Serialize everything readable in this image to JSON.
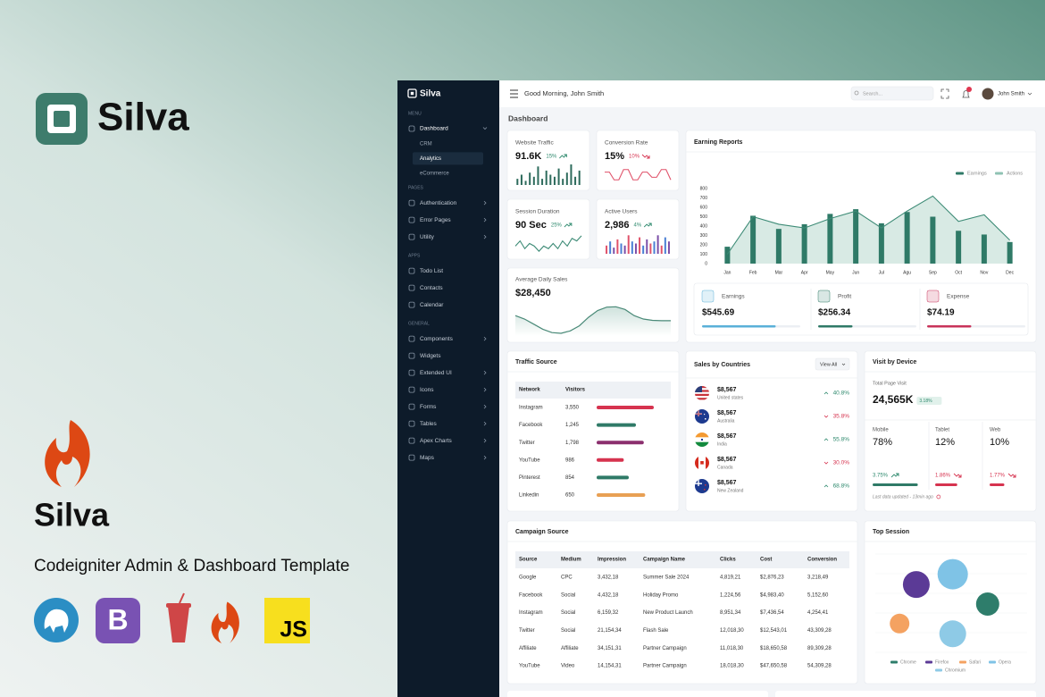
{
  "promo": {
    "brand": "Silva",
    "product": "Silva",
    "subtitle": "Codeigniter Admin & Dashboard Template",
    "tech_icons": [
      "B",
      "JS"
    ]
  },
  "sidebar": {
    "brand": "Silva",
    "sections": [
      {
        "heading": "MENU",
        "items": [
          {
            "label": "Dashboard",
            "expandable": true,
            "children": [
              "CRM",
              "Analytics",
              "eCommerce"
            ]
          }
        ]
      },
      {
        "heading": "PAGES",
        "items": [
          {
            "label": "Authentication",
            "expandable": true
          },
          {
            "label": "Error Pages",
            "expandable": true
          },
          {
            "label": "Utility",
            "expandable": true
          }
        ]
      },
      {
        "heading": "APPS",
        "items": [
          {
            "label": "Todo List"
          },
          {
            "label": "Contacts"
          },
          {
            "label": "Calendar"
          }
        ]
      },
      {
        "heading": "GENERAL",
        "items": [
          {
            "label": "Components",
            "expandable": true
          },
          {
            "label": "Widgets"
          },
          {
            "label": "Extended UI",
            "expandable": true
          },
          {
            "label": "Icons",
            "expandable": true
          },
          {
            "label": "Forms",
            "expandable": true
          },
          {
            "label": "Tables",
            "expandable": true
          },
          {
            "label": "Apex Charts",
            "expandable": true
          },
          {
            "label": "Maps",
            "expandable": true
          }
        ]
      }
    ]
  },
  "header": {
    "greeting": "Good Morning, John Smith",
    "search_placeholder": "Search...",
    "user": "John Smith"
  },
  "page_title": "Dashboard",
  "stats": [
    {
      "title": "Website Traffic",
      "value": "91.6K",
      "change": "15%",
      "trend": "up",
      "spark": {
        "kind": "bars",
        "ylim": [
          0,
          10
        ],
        "colors": [
          "#2d6b5c"
        ],
        "values": [
          3,
          5,
          2,
          6,
          4,
          9,
          3,
          7,
          5,
          4,
          8,
          3,
          6,
          10,
          4,
          7
        ]
      }
    },
    {
      "title": "Conversion Rate",
      "value": "15%",
      "change": "10%",
      "trend": "down",
      "spark": {
        "kind": "line",
        "ylim": [
          0,
          8
        ],
        "color": "#e0526a",
        "values": [
          5,
          5,
          2,
          2,
          6,
          6,
          2,
          2,
          5,
          5,
          3,
          3,
          6,
          6,
          2
        ]
      }
    },
    {
      "title": "Session Duration",
      "value": "90 Sec",
      "change": "25%",
      "trend": "up",
      "spark": {
        "kind": "line",
        "ylim": [
          0,
          8
        ],
        "color": "#3d8b76",
        "values": [
          3,
          5,
          2,
          4,
          3,
          1,
          3,
          2,
          4,
          2,
          5,
          3,
          6,
          5,
          7
        ]
      }
    },
    {
      "title": "Active Users",
      "value": "2,986",
      "change": "4%",
      "trend": "up",
      "spark": {
        "kind": "bars",
        "ylim": [
          0,
          10
        ],
        "colors": [
          "#e0526a",
          "#4a7fd4",
          "#7b4fa8"
        ],
        "values": [
          4,
          6,
          3,
          7,
          5,
          4,
          9,
          6,
          5,
          8,
          4,
          7,
          5,
          6,
          9,
          4,
          8,
          6
        ]
      }
    }
  ],
  "avg_sales": {
    "title": "Average Daily Sales",
    "value": "$28,450",
    "ylim": [
      0,
      10
    ],
    "values": [
      6,
      5,
      3.5,
      2,
      1,
      0.8,
      1.5,
      3,
      5.5,
      7.5,
      8.5,
      8.6,
      7.8,
      6,
      5,
      4.6,
      4.5,
      4.5
    ]
  },
  "earning_reports": {
    "title": "Earning Reports",
    "legend": [
      {
        "name": "Earnings",
        "color": "#2f7a67"
      },
      {
        "name": "Actions",
        "color": "#8fc2b3"
      }
    ],
    "months": [
      "Jan",
      "Feb",
      "Mar",
      "Apr",
      "May",
      "Jun",
      "Jul",
      "Agu",
      "Sep",
      "Oct",
      "Nov",
      "Dec"
    ],
    "earnings": [
      180,
      510,
      370,
      420,
      530,
      580,
      430,
      550,
      500,
      350,
      310,
      230
    ],
    "actions": [
      100,
      500,
      420,
      380,
      480,
      560,
      380,
      560,
      720,
      450,
      520,
      250
    ],
    "ylim": [
      0,
      800
    ],
    "yticks": [
      0,
      100,
      200,
      300,
      400,
      500,
      600,
      700,
      800
    ],
    "summary": [
      {
        "label": "Earnings",
        "value": "$545.69",
        "color": "#5ab0d8",
        "progress": 75
      },
      {
        "label": "Profit",
        "value": "$256.34",
        "color": "#2f7a67",
        "progress": 35
      },
      {
        "label": "Expense",
        "value": "$74.19",
        "color": "#c8335a",
        "progress": 45
      }
    ]
  },
  "traffic_source": {
    "title": "Traffic Source",
    "columns": [
      "Network",
      "Visitors"
    ],
    "rows": [
      {
        "network": "Instagram",
        "visitors": "3,550",
        "share": 80,
        "color": "#d6334f"
      },
      {
        "network": "Facebook",
        "visitors": "1,245",
        "share": 55,
        "color": "#2f7a67"
      },
      {
        "network": "Twitter",
        "visitors": "1,798",
        "share": 66,
        "color": "#8b2f6e"
      },
      {
        "network": "YouTube",
        "visitors": "986",
        "share": 38,
        "color": "#d6334f"
      },
      {
        "network": "Pinterest",
        "visitors": "854",
        "share": 45,
        "color": "#2f7a67"
      },
      {
        "network": "Linkedin",
        "visitors": "650",
        "share": 68,
        "color": "#e8a054"
      }
    ]
  },
  "sales_by_countries": {
    "title": "Sales by Countries",
    "button": "View All",
    "rows": [
      {
        "amount": "$8,567",
        "country": "United states",
        "change": "40.8%",
        "trend": "up"
      },
      {
        "amount": "$8,567",
        "country": "Australia",
        "change": "35.8%",
        "trend": "down"
      },
      {
        "amount": "$8,567",
        "country": "India",
        "change": "55.8%",
        "trend": "up"
      },
      {
        "amount": "$8,567",
        "country": "Canada",
        "change": "30.0%",
        "trend": "down"
      },
      {
        "amount": "$8,567",
        "country": "New Zealand",
        "change": "68.8%",
        "trend": "up"
      }
    ]
  },
  "visit_by_device": {
    "title": "Visit by Device",
    "total_label": "Total Page Visit",
    "total": "24,565K",
    "total_change": "3.18%",
    "devices": [
      {
        "name": "Mobile",
        "share": "78%",
        "change": "3.75%",
        "trend": "up",
        "color": "#2f7a67",
        "progress": 92
      },
      {
        "name": "Tablet",
        "share": "12%",
        "change": "1.86%",
        "trend": "down",
        "color": "#d6334f",
        "progress": 45
      },
      {
        "name": "Web",
        "share": "10%",
        "change": "1.77%",
        "trend": "down",
        "color": "#d6334f",
        "progress": 30
      }
    ],
    "footer": "Last data updated - 13min ago"
  },
  "campaign_source": {
    "title": "Campaign Source",
    "columns": [
      "Source",
      "Medium",
      "Impression",
      "Campaign Name",
      "Clicks",
      "Cost",
      "Conversion"
    ],
    "rows": [
      [
        "Google",
        "CPC",
        "3,432,18",
        "Summer Sale 2024",
        "4,819,21",
        "$2,876,23",
        "3,218,49"
      ],
      [
        "Facebook",
        "Social",
        "4,432,18",
        "Holiday Promo",
        "1,224,56",
        "$4,983,40",
        "5,152,60"
      ],
      [
        "Instagram",
        "Social",
        "6,159,32",
        "New Product Launch",
        "8,951,34",
        "$7,436,54",
        "4,254,41"
      ],
      [
        "Twitter",
        "Social",
        "21,154,34",
        "Flash Sale",
        "12,018,30",
        "$12,543,01",
        "43,309,28"
      ],
      [
        "Affiliate",
        "Affiliate",
        "34,151,31",
        "Partner Campaign",
        "11,018,30",
        "$18,650,58",
        "89,309,28"
      ],
      [
        "YouTube",
        "Video",
        "14,154,31",
        "Partner Campaign",
        "18,018,30",
        "$47,650,58",
        "54,309,28"
      ]
    ]
  },
  "top_session": {
    "title": "Top Session",
    "xlim": [
      0,
      100
    ],
    "ylim": [
      0,
      100
    ],
    "series": [
      {
        "name": "Chrome",
        "color": "#2e7d6b",
        "x": 74,
        "y": 47,
        "size": 13
      },
      {
        "name": "Firefox",
        "color": "#5b3a96",
        "x": 27,
        "y": 66,
        "size": 15
      },
      {
        "name": "Safari",
        "color": "#f4a261",
        "x": 16,
        "y": 28,
        "size": 11
      },
      {
        "name": "Opera",
        "color": "#7fc3e6",
        "x": 51,
        "y": 76,
        "size": 17
      },
      {
        "name": "Chromium",
        "color": "#8ecae6",
        "x": 51,
        "y": 18,
        "size": 15
      }
    ]
  }
}
